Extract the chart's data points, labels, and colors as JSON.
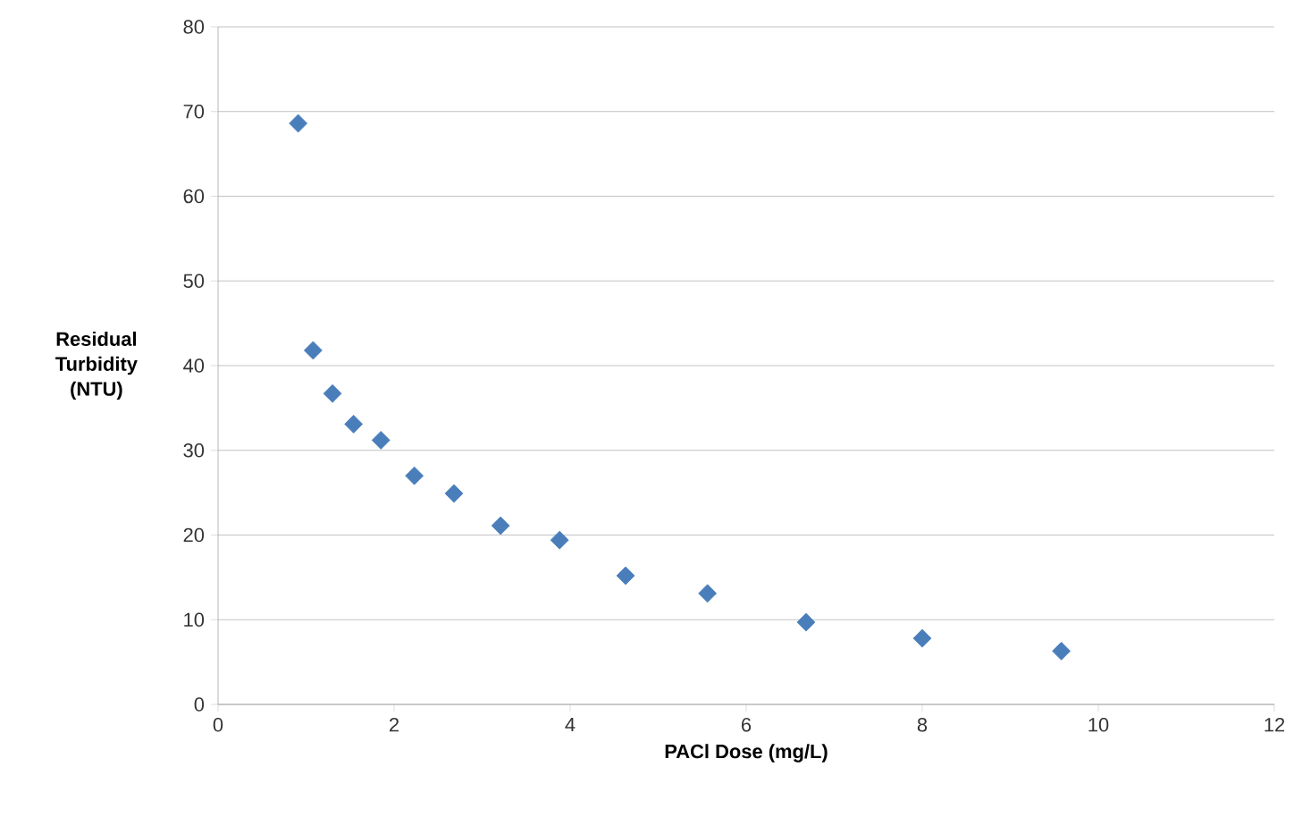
{
  "chart_data": {
    "type": "scatter",
    "xlabel": "PACl Dose (mg/L)",
    "ylabel": "Residual Turbidity (NTU)",
    "x": [
      0.91,
      1.08,
      1.3,
      1.54,
      1.85,
      2.23,
      2.68,
      3.21,
      3.88,
      4.63,
      5.56,
      6.68,
      8.0,
      9.58
    ],
    "series": [
      {
        "color": "#4a7ebb",
        "values": [
          68.6,
          41.8,
          36.7,
          33.1,
          31.2,
          27.0,
          24.9,
          21.1,
          19.4,
          15.2,
          13.1,
          9.7,
          7.8,
          6.3
        ]
      }
    ],
    "xlim": [
      0,
      12
    ],
    "ylim": [
      0,
      80
    ],
    "xticks": [
      0,
      2,
      4,
      6,
      8,
      10,
      12
    ],
    "yticks": [
      0,
      10,
      20,
      30,
      40,
      50,
      60,
      70,
      80
    ],
    "grid": "y",
    "marker": "diamond"
  }
}
